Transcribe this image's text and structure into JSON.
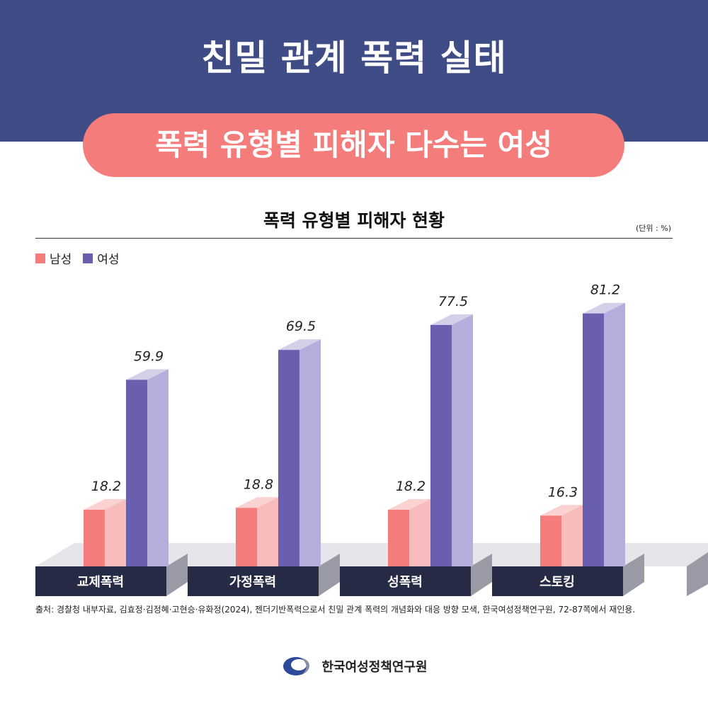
{
  "header": {
    "title": "친밀 관계 폭력 실태",
    "subtitle": "폭력 유형별 피해자 다수는 여성"
  },
  "chart_data": {
    "type": "bar",
    "title": "폭력 유형별 피해자 현황",
    "unit_note": "(단위 : %)",
    "categories": [
      "교제폭력",
      "가정폭력",
      "성폭력",
      "스토킹"
    ],
    "series": [
      {
        "name": "남성",
        "values": [
          18.2,
          18.8,
          18.2,
          16.3
        ],
        "color": "#f47c7a",
        "side_color": "#f9bcbc"
      },
      {
        "name": "여성",
        "values": [
          59.9,
          69.5,
          77.5,
          81.2
        ],
        "color": "#6a5fae",
        "side_color": "#b3aedb"
      }
    ],
    "value_labels": [
      [
        "18.2",
        "18.8",
        "18.2",
        "16.3"
      ],
      [
        "59.9",
        "69.5",
        "77.5",
        "81.2"
      ]
    ],
    "legend_position": "top-left",
    "grid": false
  },
  "source": "출처: 경찰청 내부자료, 김효정·김정혜·고현승·유화정(2024), 젠더기반폭력으로서 친밀 관계 폭력의 개념화와 대응 방향 모색, 한국여성정책연구원, 72-87쪽에서 재인용.",
  "footer": {
    "org_name": "한국여성정책연구원",
    "logo_icon": "kwdi-logo-icon"
  }
}
